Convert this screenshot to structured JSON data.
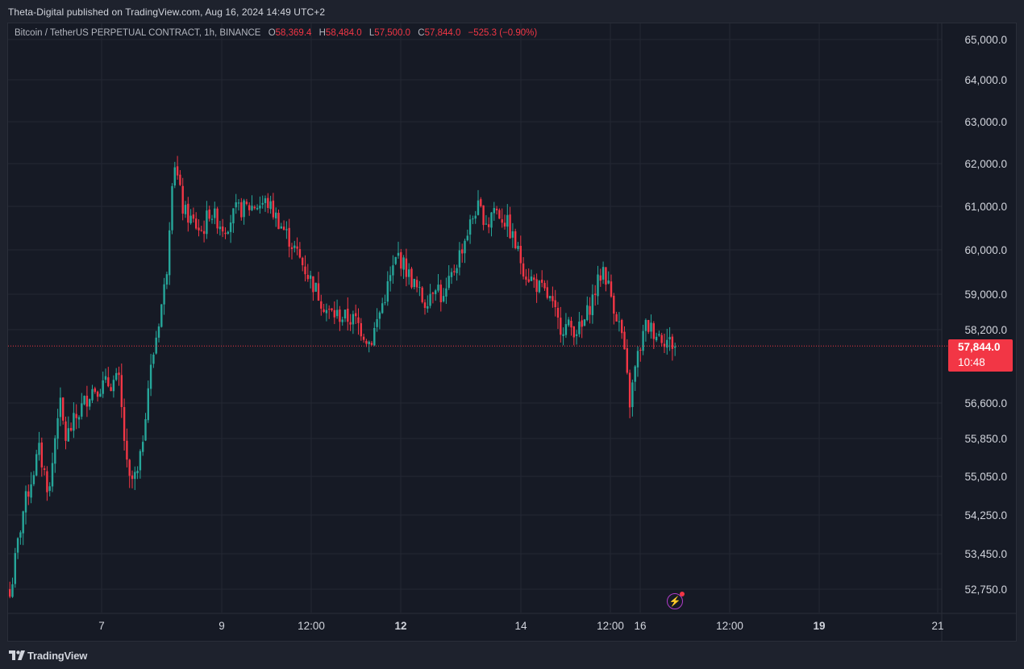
{
  "header": {
    "publisher_text": "Theta-Digital published on TradingView.com, Aug 16, 2024 14:49 UTC+2"
  },
  "legend": {
    "symbol": "Bitcoin / TetherUS PERPETUAL CONTRACT, 1h, BINANCE",
    "open_label": "O",
    "open_value": "58,369.4",
    "high_label": "H",
    "high_value": "58,484.0",
    "low_label": "L",
    "low_value": "57,500.0",
    "close_label": "C",
    "close_value": "57,844.0",
    "change": "−525.3 (−0.90%)"
  },
  "price_tag": {
    "price": "57,844.0",
    "countdown": "10:48",
    "color": "#f23645"
  },
  "footer": {
    "brand": "TradingView"
  },
  "indicator_icon": "lightning-bolt-icon",
  "colors": {
    "up": "#26a69a",
    "down": "#f23645",
    "background": "#161a25",
    "grid": "#242833",
    "text": "#d1d4dc"
  },
  "chart_data": {
    "type": "candlestick",
    "title": "Bitcoin / TetherUS PERPETUAL CONTRACT, 1h, BINANCE",
    "y_axis": {
      "position": "right",
      "tick_labels": [
        "65,000.0",
        "64,000.0",
        "63,000.0",
        "62,000.0",
        "61,000.0",
        "60,000.0",
        "59,000.0",
        "58,200.0",
        "56,600.0",
        "55,850.0",
        "55,050.0",
        "54,250.0",
        "53,450.0",
        "52,750.0"
      ],
      "tick_values": [
        65000,
        64000,
        63000,
        62000,
        61000,
        60000,
        59000,
        58200,
        56600,
        55850,
        55050,
        54250,
        53450,
        52750
      ]
    },
    "x_axis": {
      "tick_labels": [
        "7",
        "9",
        "12:00",
        "12",
        "14",
        "12:00",
        "16",
        "12:00",
        "19",
        "21"
      ],
      "tick_label_bold": [
        false,
        false,
        false,
        true,
        false,
        false,
        false,
        false,
        true,
        false
      ]
    },
    "last_price": 57844.0,
    "grid": true,
    "anchors": [
      {
        "date": "Aug 5",
        "price": 52500
      },
      {
        "date": "Aug 5",
        "price": 54300
      },
      {
        "date": "Aug 6",
        "price": 55600
      },
      {
        "date": "Aug 6",
        "price": 54700
      },
      {
        "date": "Aug 6",
        "price": 56700
      },
      {
        "date": "Aug 7",
        "price": 55850
      },
      {
        "date": "Aug 7",
        "price": 56900
      },
      {
        "date": "Aug 7",
        "price": 57100
      },
      {
        "date": "Aug 8",
        "price": 54900
      },
      {
        "date": "Aug 8",
        "price": 55100
      },
      {
        "date": "Aug 8",
        "price": 56900
      },
      {
        "date": "Aug 8",
        "price": 57900
      },
      {
        "date": "Aug 8",
        "price": 59400
      },
      {
        "date": "Aug 9",
        "price": 62200
      },
      {
        "date": "Aug 9",
        "price": 60900
      },
      {
        "date": "Aug 9",
        "price": 60600
      },
      {
        "date": "Aug 10",
        "price": 60400
      },
      {
        "date": "Aug 10",
        "price": 60900
      },
      {
        "date": "Aug 10",
        "price": 60500
      },
      {
        "date": "Aug 11",
        "price": 60900
      },
      {
        "date": "Aug 11",
        "price": 61100
      },
      {
        "date": "Aug 11",
        "price": 60300
      },
      {
        "date": "Aug 12",
        "price": 58600
      },
      {
        "date": "Aug 12",
        "price": 58400
      },
      {
        "date": "Aug 12",
        "price": 57900
      },
      {
        "date": "Aug 12",
        "price": 59900
      },
      {
        "date": "Aug 13",
        "price": 58800
      },
      {
        "date": "Aug 13",
        "price": 59300
      },
      {
        "date": "Aug 13",
        "price": 58800
      },
      {
        "date": "Aug 13",
        "price": 59300
      },
      {
        "date": "Aug 13",
        "price": 61000
      },
      {
        "date": "Aug 14",
        "price": 60600
      },
      {
        "date": "Aug 14",
        "price": 61000
      },
      {
        "date": "Aug 14",
        "price": 60600
      },
      {
        "date": "Aug 14",
        "price": 59500
      },
      {
        "date": "Aug 15",
        "price": 58900
      },
      {
        "date": "Aug 15",
        "price": 58300
      },
      {
        "date": "Aug 15",
        "price": 58200
      },
      {
        "date": "Aug 15",
        "price": 59600
      },
      {
        "date": "Aug 15",
        "price": 58100
      },
      {
        "date": "Aug 15",
        "price": 56600
      },
      {
        "date": "Aug 16",
        "price": 57500
      },
      {
        "date": "Aug 16",
        "price": 58300
      },
      {
        "date": "Aug 16",
        "price": 57844
      }
    ]
  }
}
